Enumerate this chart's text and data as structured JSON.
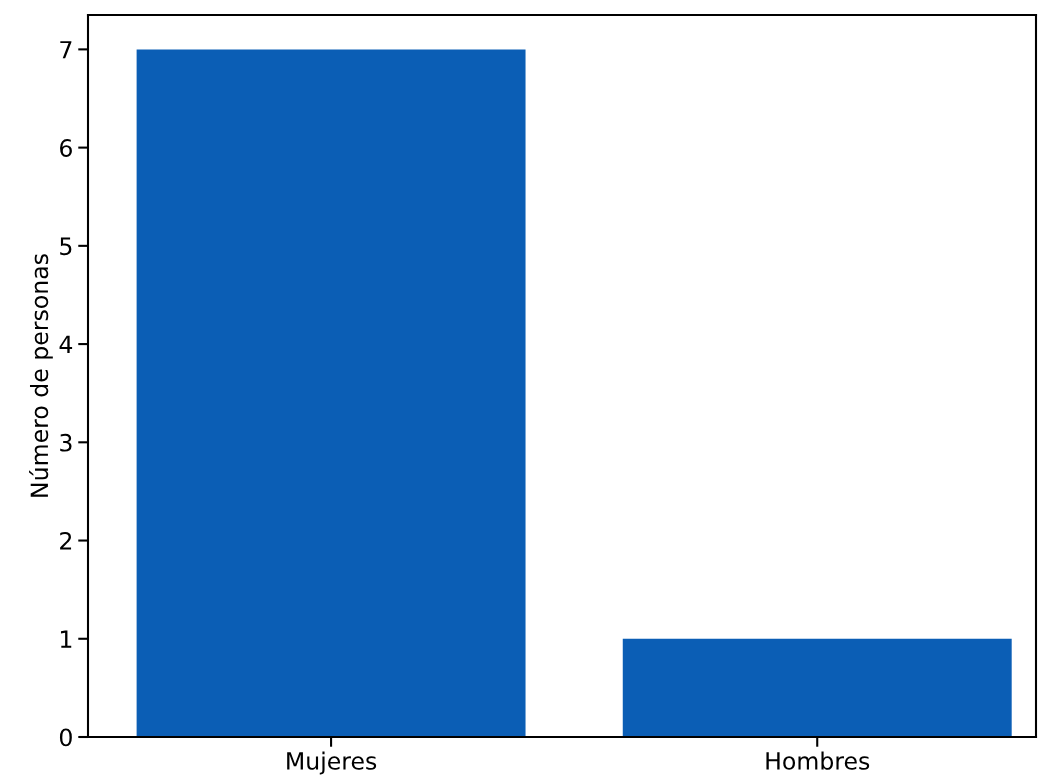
{
  "chart_data": {
    "type": "bar",
    "ylabel": "Número de personas",
    "categories": [
      "Mujeres",
      "Hombres"
    ],
    "values": [
      7,
      1
    ],
    "color": "#0b5eb5",
    "ylim": [
      0,
      7.35
    ],
    "yticks": [
      0,
      1,
      2,
      3,
      4,
      5,
      6,
      7
    ],
    "grid": false
  }
}
